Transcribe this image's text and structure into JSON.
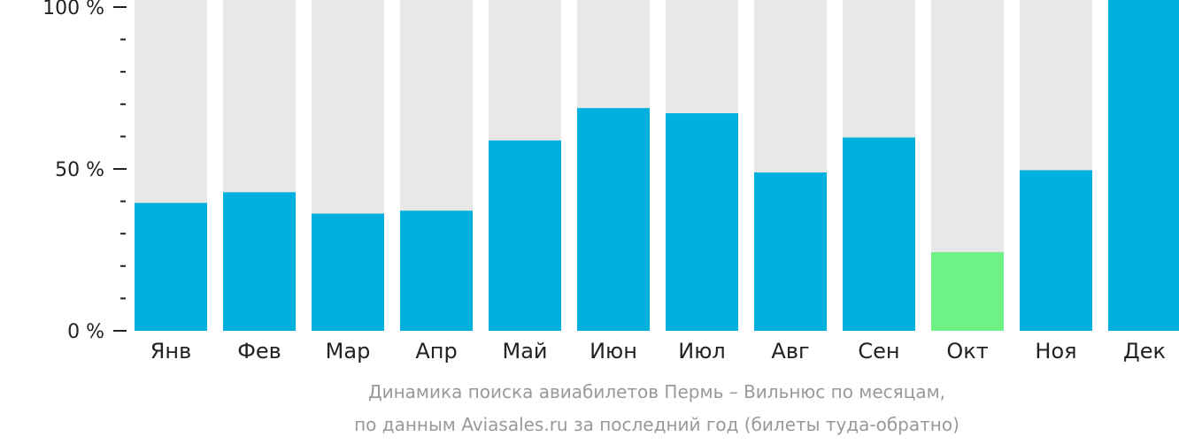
{
  "chart_data": {
    "type": "bar",
    "categories": [
      "Янв",
      "Фев",
      "Мар",
      "Апр",
      "Май",
      "Июн",
      "Июл",
      "Авг",
      "Сен",
      "Окт",
      "Ноя",
      "Дек"
    ],
    "values": [
      39.5,
      42.8,
      36.2,
      37.1,
      58.8,
      68.8,
      67.2,
      48.9,
      59.7,
      24.3,
      49.6,
      100
    ],
    "ylim": [
      0,
      100
    ],
    "yticks": [
      {
        "value": 0,
        "label": "0 %"
      },
      {
        "value": 50,
        "label": "50 %"
      },
      {
        "value": 100,
        "label": "100 %"
      }
    ],
    "minor_ticks": [
      10,
      20,
      30,
      40,
      60,
      70,
      80,
      90
    ],
    "highlight_index": 9,
    "colors": {
      "bar": "#00b0de",
      "highlight": "#6ef286",
      "background_bar": "#e8e8e8",
      "axis": "#222222"
    },
    "caption": [
      "Динамика поиска авиабилетов Пермь – Вильнюс по месяцам,",
      "по данным Aviasales.ru за последний год (билеты туда-обратно)"
    ]
  }
}
